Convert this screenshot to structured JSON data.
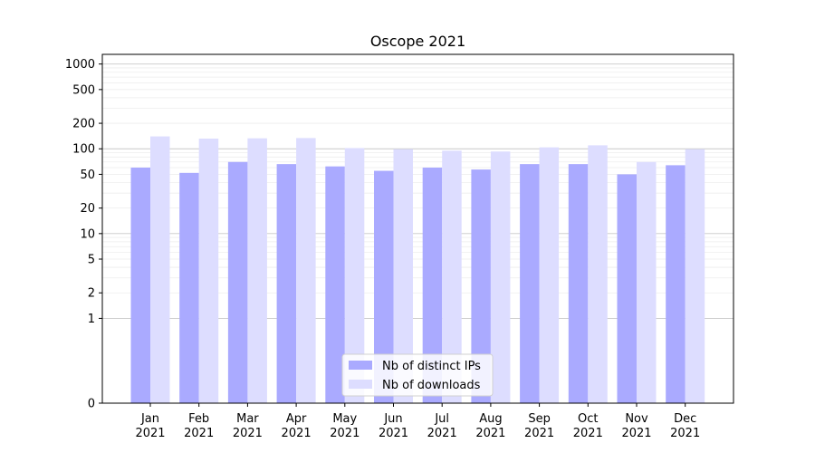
{
  "chart_data": {
    "type": "bar",
    "title": "Oscope 2021",
    "xlabel": "",
    "ylabel": "",
    "yscale": "symlog",
    "ylim": [
      0,
      1300
    ],
    "yticks": [
      "0",
      "1",
      "2",
      "5",
      "10",
      "20",
      "50",
      "100",
      "200",
      "500",
      "1000"
    ],
    "categories": [
      {
        "month": "Jan",
        "year": "2021"
      },
      {
        "month": "Feb",
        "year": "2021"
      },
      {
        "month": "Mar",
        "year": "2021"
      },
      {
        "month": "Apr",
        "year": "2021"
      },
      {
        "month": "May",
        "year": "2021"
      },
      {
        "month": "Jun",
        "year": "2021"
      },
      {
        "month": "Jul",
        "year": "2021"
      },
      {
        "month": "Aug",
        "year": "2021"
      },
      {
        "month": "Sep",
        "year": "2021"
      },
      {
        "month": "Oct",
        "year": "2021"
      },
      {
        "month": "Nov",
        "year": "2021"
      },
      {
        "month": "Dec",
        "year": "2021"
      }
    ],
    "series": [
      {
        "name": "Nb of distinct IPs",
        "color": "#aaaaff",
        "values": [
          60,
          52,
          70,
          66,
          62,
          55,
          60,
          57,
          66,
          66,
          50,
          64
        ]
      },
      {
        "name": "Nb of downloads",
        "color": "#ddddff",
        "values": [
          140,
          132,
          133,
          134,
          102,
          99,
          95,
          93,
          104,
          110,
          70,
          99
        ]
      }
    ],
    "grid": true,
    "legend_position": "bottom-center"
  }
}
